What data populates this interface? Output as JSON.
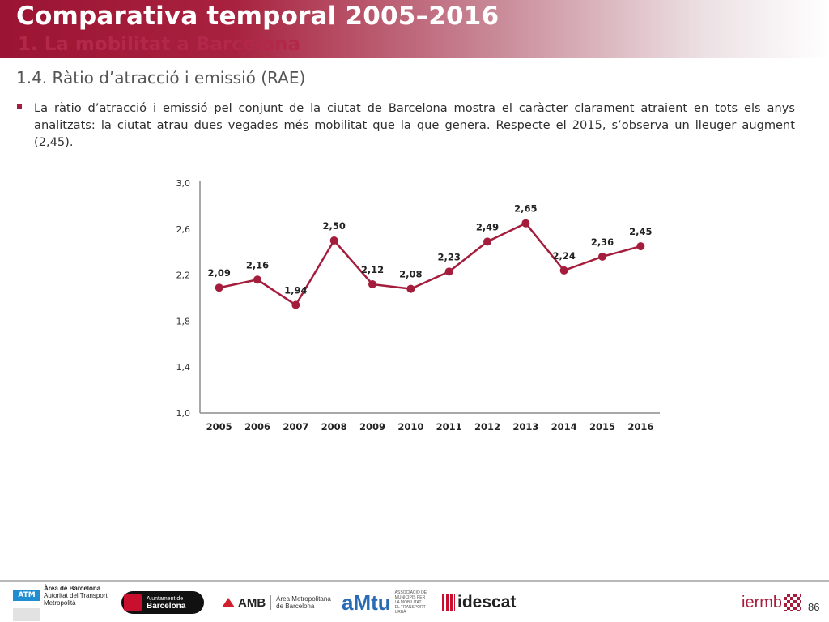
{
  "header": {
    "title": "Comparativa temporal 2005–2016",
    "subtitle": "1. La mobilitat a Barcelona"
  },
  "section": {
    "heading": "1.4. Ràtio d’atracció i emissió (RAE)"
  },
  "bullet": {
    "text": "La ràtio d’atracció i emissió pel conjunt de la ciutat de Barcelona mostra el caràcter clarament atraient en tots els anys analitzats: la ciutat atrau dues vegades més mobilitat que la que genera. Respecte el 2015, s’observa un lleuger augment (2,45)."
  },
  "chart_data": {
    "type": "line",
    "categories": [
      "2005",
      "2006",
      "2007",
      "2008",
      "2009",
      "2010",
      "2011",
      "2012",
      "2013",
      "2014",
      "2015",
      "2016"
    ],
    "series": [
      {
        "values": [
          2.09,
          2.16,
          1.94,
          2.5,
          2.12,
          2.08,
          2.23,
          2.49,
          2.65,
          2.24,
          2.36,
          2.45
        ],
        "labels": [
          "2,09",
          "2,16",
          "1,94",
          "2,50",
          "2,12",
          "2,08",
          "2,23",
          "2,49",
          "2,65",
          "2,24",
          "2,36",
          "2,45"
        ]
      }
    ],
    "yticks": [
      "1,0",
      "1,4",
      "1,8",
      "2,2",
      "2,6",
      "3,0"
    ],
    "ytick_values": [
      1.0,
      1.4,
      1.8,
      2.2,
      2.6,
      3.0
    ],
    "ylim": [
      1.0,
      3.0
    ],
    "grid": false,
    "color": "#a51d3c"
  },
  "footer": {
    "logos": {
      "atm_badge": "ATM",
      "atm_line1": "Àrea de Barcelona",
      "atm_line2": "Autoritat del Transport",
      "atm_line3": "Metropolità",
      "ajuntament_line1": "Ajuntament de",
      "ajuntament_line2": "Barcelona",
      "amb_name": "AMB",
      "amb_line1": "Àrea Metropolitana",
      "amb_line2": "de Barcelona",
      "amtu_name": "aMtu",
      "amtu_desc": "ASSOCIACIÓ DE MUNICIPIS PER LA MOBILITAT I EL TRANSPORT URBÀ",
      "idescat_name": "idescat",
      "iermb_name": "iermb"
    },
    "page_number": "86"
  }
}
